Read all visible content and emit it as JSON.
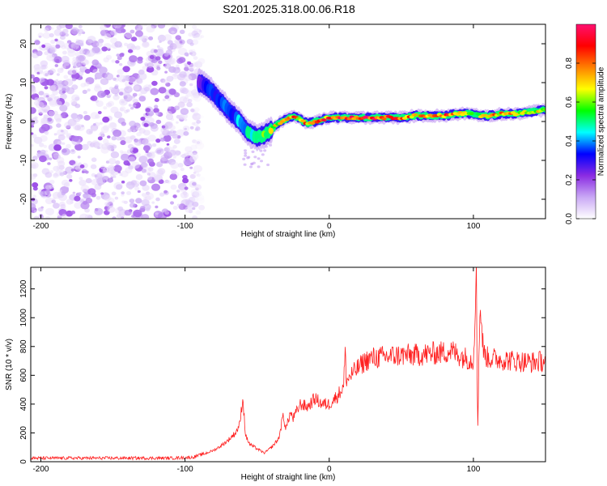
{
  "title": "S201.2025.318.00.06.R18",
  "chart_data": [
    {
      "type": "heatmap",
      "xlabel": "Height of straight line (km)",
      "ylabel": "Frequency (Hz)",
      "xlim": [
        -207,
        150
      ],
      "ylim": [
        -25,
        25
      ],
      "xticks": [
        -200,
        -100,
        0,
        100
      ],
      "yticks": [
        -20,
        -10,
        0,
        10,
        20
      ],
      "colorbar": {
        "label": "Normalized spectral amplitude",
        "range": [
          0,
          1
        ],
        "ticks": [
          "0.0",
          "0.2",
          "0.4",
          "0.6",
          "0.8"
        ],
        "colormap": [
          "#ffffff",
          "#c9a8f5",
          "#8a2be2",
          "#0000ff",
          "#00ffff",
          "#00ff00",
          "#ffff00",
          "#ff8000",
          "#ff0000",
          "#ff1070"
        ]
      },
      "noise_region": {
        "x": [
          -207,
          -88
        ],
        "y": [
          -25,
          25
        ]
      },
      "ridge": {
        "x": [
          -90,
          -85,
          -80,
          -75,
          -70,
          -65,
          -60,
          -55,
          -50,
          -45,
          -40,
          -35,
          -30,
          -25,
          -20,
          -15,
          -10,
          -5,
          0,
          10,
          20,
          30,
          40,
          50,
          60,
          70,
          80,
          90,
          95,
          100,
          105,
          110,
          120,
          130,
          140,
          150
        ],
        "y": [
          10,
          9,
          7,
          5,
          3,
          1,
          -1,
          -3,
          -4,
          -3.5,
          -2,
          -0.5,
          0.5,
          1.5,
          0.5,
          -0.5,
          0,
          0.5,
          1,
          1,
          1,
          1,
          1,
          1,
          1.5,
          1.5,
          1.5,
          2,
          2,
          2,
          1.5,
          1.5,
          2,
          2,
          2.5,
          3
        ],
        "amplitude": [
          0.3,
          0.4,
          0.35,
          0.4,
          0.35,
          0.4,
          0.45,
          0.5,
          0.55,
          0.6,
          0.65,
          0.7,
          0.8,
          0.85,
          0.75,
          0.85,
          0.8,
          0.85,
          0.9,
          0.9,
          0.95,
          0.9,
          0.95,
          0.9,
          0.8,
          0.75,
          0.85,
          0.8,
          0.75,
          0.5,
          0.7,
          0.75,
          0.8,
          0.75,
          0.7,
          0.75
        ]
      }
    },
    {
      "type": "line",
      "xlabel": "Height of straight line (km)",
      "ylabel": "SNR (10 * v/v)",
      "xlim": [
        -207,
        150
      ],
      "ylim": [
        0,
        1350
      ],
      "xticks": [
        -200,
        -100,
        0,
        100
      ],
      "yticks": [
        0,
        200,
        400,
        600,
        800,
        1000,
        1200
      ],
      "series": [
        {
          "color": "#ff2020",
          "x": [
            -207,
            -190,
            -170,
            -150,
            -130,
            -110,
            -95,
            -85,
            -80,
            -75,
            -70,
            -65,
            -62,
            -60,
            -58,
            -55,
            -50,
            -45,
            -40,
            -35,
            -32,
            -30,
            -27,
            -25,
            -20,
            -15,
            -10,
            -5,
            0,
            5,
            10,
            11,
            12,
            15,
            20,
            25,
            30,
            40,
            50,
            60,
            70,
            80,
            85,
            90,
            95,
            100,
            102,
            103,
            104,
            105,
            107,
            110,
            120,
            130,
            140,
            150
          ],
          "y": [
            25,
            25,
            25,
            25,
            25,
            25,
            30,
            60,
            80,
            110,
            150,
            200,
            260,
            450,
            180,
            120,
            90,
            60,
            100,
            160,
            320,
            230,
            340,
            300,
            400,
            380,
            440,
            400,
            400,
            450,
            520,
            760,
            560,
            600,
            650,
            700,
            720,
            730,
            740,
            740,
            750,
            760,
            770,
            740,
            720,
            700,
            1330,
            180,
            900,
            1050,
            760,
            720,
            710,
            700,
            690,
            700
          ]
        }
      ]
    }
  ]
}
